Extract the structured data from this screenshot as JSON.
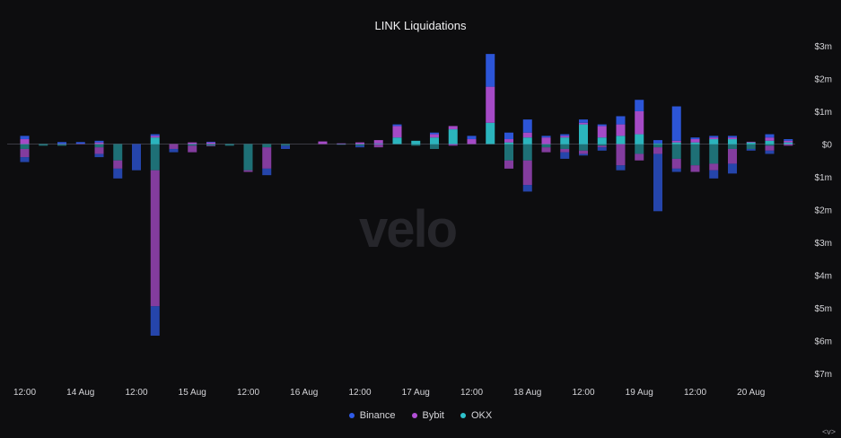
{
  "chart_data": {
    "type": "bar",
    "title": "LINK Liquidations",
    "xlabel": "",
    "ylabel": "",
    "ylim": [
      -7,
      3
    ],
    "y_ticks": [
      {
        "value": 3,
        "label": "$3m"
      },
      {
        "value": 2,
        "label": "$2m"
      },
      {
        "value": 1,
        "label": "$1m"
      },
      {
        "value": 0,
        "label": "$0"
      },
      {
        "value": -1,
        "label": "$1m"
      },
      {
        "value": -2,
        "label": "$2m"
      },
      {
        "value": -3,
        "label": "$3m"
      },
      {
        "value": -4,
        "label": "$4m"
      },
      {
        "value": -5,
        "label": "$5m"
      },
      {
        "value": -6,
        "label": "$6m"
      },
      {
        "value": -7,
        "label": "$7m"
      }
    ],
    "x_ticks": [
      {
        "index": 0,
        "label": "12:00"
      },
      {
        "index": 3,
        "label": "14 Aug"
      },
      {
        "index": 6,
        "label": "12:00"
      },
      {
        "index": 9,
        "label": "15 Aug"
      },
      {
        "index": 12,
        "label": "12:00"
      },
      {
        "index": 15,
        "label": "16 Aug"
      },
      {
        "index": 18,
        "label": "12:00"
      },
      {
        "index": 21,
        "label": "17 Aug"
      },
      {
        "index": 24,
        "label": "12:00"
      },
      {
        "index": 27,
        "label": "18 Aug"
      },
      {
        "index": 30,
        "label": "12:00"
      },
      {
        "index": 33,
        "label": "19 Aug"
      },
      {
        "index": 36,
        "label": "12:00"
      },
      {
        "index": 39,
        "label": "20 Aug"
      }
    ],
    "series": [
      {
        "name": "Binance",
        "color": "#2f5be8",
        "long": [
          0.1,
          0,
          0.05,
          0.05,
          0.05,
          0,
          0,
          0.05,
          0,
          0,
          0.02,
          0,
          0,
          0,
          0,
          0,
          0,
          0,
          0,
          0,
          0.05,
          0,
          0.05,
          0,
          0.1,
          1,
          0.2,
          0.4,
          0.05,
          0.05,
          0.1,
          0.05,
          0.25,
          0.35,
          0.1,
          1.05,
          0.05,
          0.05,
          0.05,
          0,
          0.1,
          0.05
        ],
        "short": [
          0.15,
          0,
          0,
          0,
          0.1,
          0.3,
          0.8,
          0.9,
          0.1,
          0,
          0,
          0,
          0,
          0.2,
          0.1,
          0,
          0,
          0,
          0.05,
          0,
          0,
          0,
          0,
          0,
          0,
          0,
          0,
          0.2,
          0,
          0.2,
          0.05,
          0.1,
          0.15,
          0,
          1.75,
          0.1,
          0,
          0.25,
          0.3,
          0.05,
          0.1,
          0
        ],
        "short_stack": "top"
      },
      {
        "name": "Bybit",
        "color": "#b24fd6",
        "long": [
          0.15,
          0,
          0.01,
          0.01,
          0.05,
          0,
          0,
          0.05,
          0,
          0.05,
          0.05,
          0,
          0,
          0,
          0,
          0,
          0.08,
          0.02,
          0.05,
          0.1,
          0.35,
          0,
          0.1,
          0.1,
          0.15,
          1.1,
          0.1,
          0.15,
          0.2,
          0.05,
          0.05,
          0.35,
          0.35,
          0.7,
          0,
          0.05,
          0.1,
          0.05,
          0.05,
          0.02,
          0.1,
          0.05
        ],
        "short": [
          0.25,
          0,
          0,
          0,
          0.2,
          0.25,
          0,
          4.15,
          0.15,
          0.2,
          0.02,
          0,
          0.05,
          0.65,
          0,
          0,
          0,
          0,
          0,
          0.1,
          0,
          0,
          0,
          0.05,
          0,
          0,
          0.25,
          0.75,
          0.15,
          0.1,
          0.1,
          0.05,
          0.65,
          0.2,
          0.2,
          0.3,
          0.2,
          0.2,
          0.45,
          0,
          0.15,
          0.05
        ],
        "short_stack": "mid"
      },
      {
        "name": "OKX",
        "color": "#2ec2cc",
        "long": [
          0,
          0,
          0,
          0,
          0,
          0,
          0,
          0.2,
          0,
          0,
          0,
          0,
          0,
          0,
          0,
          0,
          0,
          0,
          0,
          0.02,
          0.2,
          0.1,
          0.2,
          0.45,
          0,
          0.65,
          0.05,
          0.2,
          0,
          0.2,
          0.6,
          0.2,
          0.25,
          0.3,
          0.02,
          0.05,
          0.05,
          0.15,
          0.15,
          0.05,
          0.1,
          0.05
        ],
        "short": [
          0.15,
          0.05,
          0.05,
          0,
          0.1,
          0.5,
          0,
          0.8,
          0,
          0.05,
          0.05,
          0.05,
          0.8,
          0.1,
          0.05,
          0,
          0,
          0.02,
          0.05,
          0,
          0,
          0.05,
          0.15,
          0,
          0,
          0,
          0.5,
          0.5,
          0.1,
          0.15,
          0.2,
          0.05,
          0,
          0.3,
          0.1,
          0.45,
          0.65,
          0.6,
          0.15,
          0.15,
          0.05,
          0
        ],
        "short_stack": "bottom"
      }
    ]
  },
  "legend": {
    "binance": "Binance",
    "bybit": "Bybit",
    "okx": "OKX"
  },
  "watermark": "velo",
  "corner_control": "<v>"
}
